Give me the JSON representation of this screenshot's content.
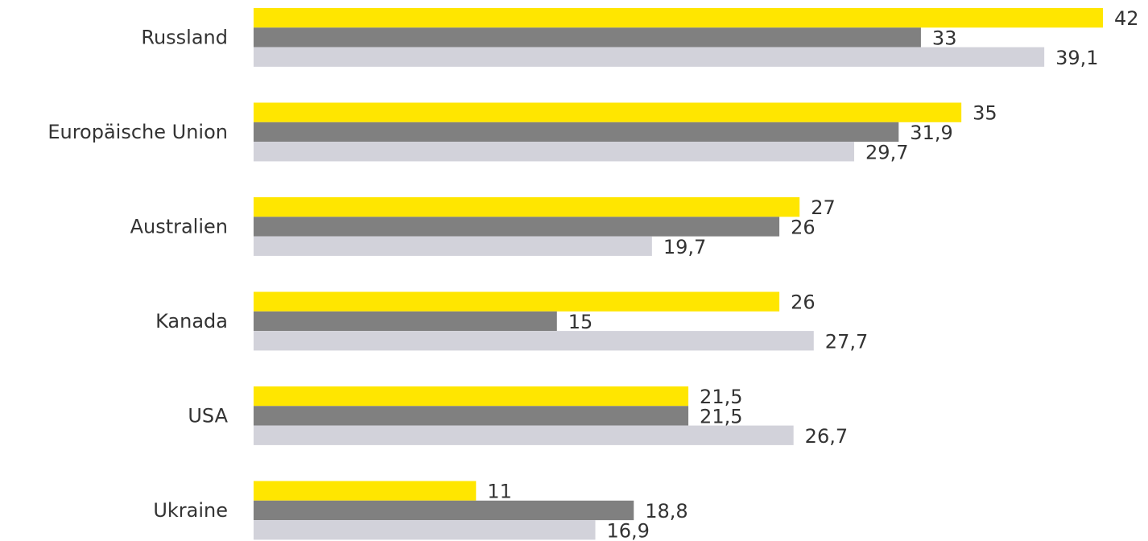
{
  "chart_data": {
    "type": "bar",
    "orientation": "horizontal",
    "categories": [
      "Russland",
      "Europäische Union",
      "Australien",
      "Kanada",
      "USA",
      "Ukraine"
    ],
    "series": [
      {
        "color": "#ffe600",
        "values": [
          42,
          35,
          27,
          26,
          21.5,
          11
        ],
        "value_labels": [
          "42",
          "35",
          "27",
          "26",
          "21,5",
          "11"
        ]
      },
      {
        "color": "#808080",
        "values": [
          33,
          31.9,
          26,
          15,
          21.5,
          18.8
        ],
        "value_labels": [
          "33",
          "31,9",
          "26",
          "15",
          "21,5",
          "18,8"
        ]
      },
      {
        "color": "#d2d2da",
        "values": [
          39.1,
          29.7,
          19.7,
          27.7,
          26.7,
          16.9
        ],
        "value_labels": [
          "39,1",
          "29,7",
          "19,7",
          "27,7",
          "26,7",
          "16,9"
        ]
      }
    ]
  }
}
